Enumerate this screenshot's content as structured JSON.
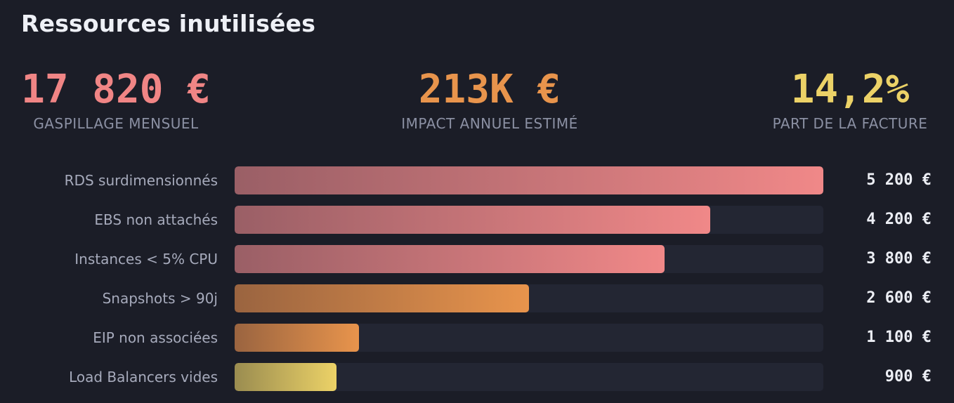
{
  "header": {
    "title": "Ressources inutilisées"
  },
  "kpis": [
    {
      "value": "17 820 €",
      "label": "GASPILLAGE MENSUEL",
      "color": "#f08585"
    },
    {
      "value": "213K €",
      "label": "IMPACT ANNUEL ESTIMÉ",
      "color": "#e8944c"
    },
    {
      "value": "14,2%",
      "label": "PART DE LA FACTURE",
      "color": "#ecd267"
    }
  ],
  "colors": {
    "red_start": "#9a5f66",
    "red_end": "#f08888",
    "orange_start": "#9a6440",
    "orange_end": "#e8944c",
    "yellow_start": "#9a8c50",
    "yellow_end": "#ecd267"
  },
  "chart_data": {
    "type": "bar",
    "orientation": "horizontal",
    "title": "Ressources inutilisées",
    "xlim": [
      0,
      5200
    ],
    "categories": [
      "RDS surdimensionnés",
      "EBS non attachés",
      "Instances < 5% CPU",
      "Snapshots > 90j",
      "EIP non associées",
      "Load Balancers vides"
    ],
    "values": [
      5200,
      4200,
      3800,
      2600,
      1100,
      900
    ],
    "value_labels": [
      "5 200 €",
      "4 200 €",
      "3 800 €",
      "2 600 €",
      "1 100 €",
      "900 €"
    ],
    "bar_colors": [
      "red",
      "red",
      "red",
      "orange",
      "orange",
      "yellow"
    ]
  }
}
